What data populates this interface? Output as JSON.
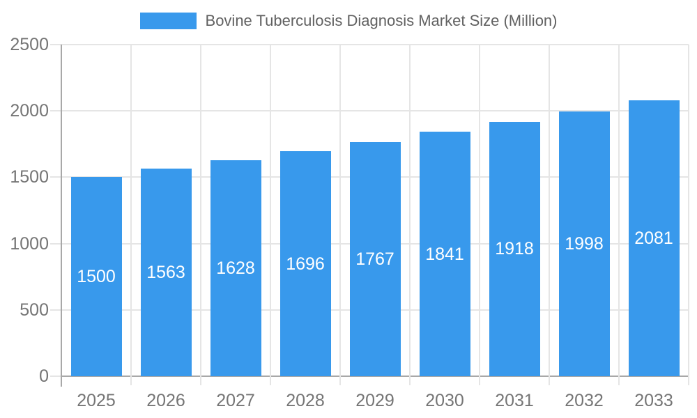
{
  "chart_data": {
    "type": "bar",
    "title": "Bovine Tuberculosis Diagnosis Market Size (Million)",
    "categories": [
      "2025",
      "2026",
      "2027",
      "2028",
      "2029",
      "2030",
      "2031",
      "2032",
      "2033"
    ],
    "values": [
      1500,
      1563,
      1628,
      1696,
      1767,
      1841,
      1918,
      1998,
      2081
    ],
    "value_labels_shown": true,
    "xlabel": "",
    "ylabel": "",
    "ylim": [
      0,
      2500
    ],
    "yticks": [
      0,
      500,
      1000,
      1500,
      2000,
      2500
    ],
    "grid": true,
    "legend_position": "top-center",
    "colors": {
      "bar": "#3899ec",
      "gridline": "#e5e5e5",
      "axis_line": "#a8a8a8",
      "tick_label": "#757575",
      "legend_text": "#616161",
      "value_label": "#ffffff",
      "background": "#ffffff"
    }
  }
}
